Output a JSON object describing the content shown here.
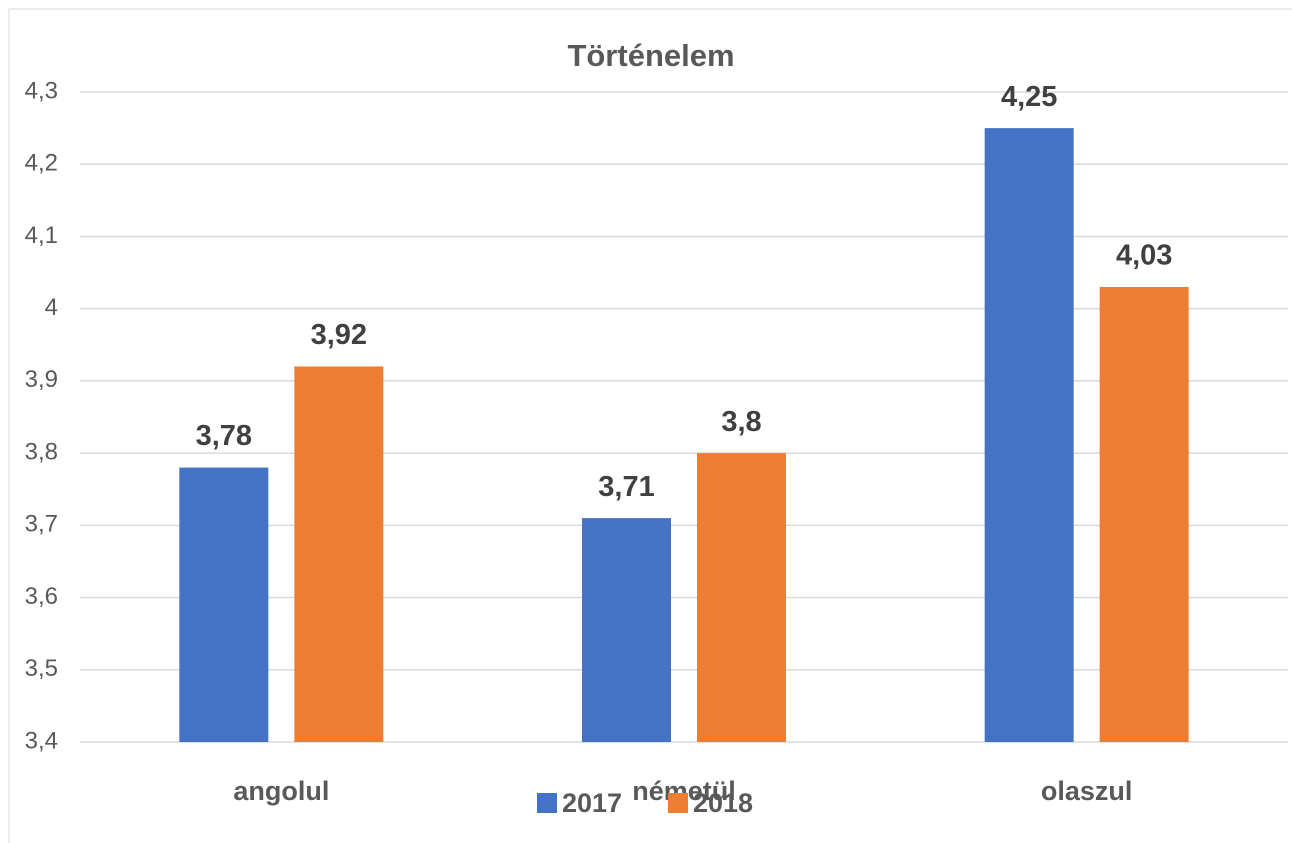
{
  "chart_data": {
    "type": "bar",
    "title": "Történelem",
    "categories": [
      "angolul",
      "németül",
      "olaszul"
    ],
    "series": [
      {
        "name": "2017",
        "color": "#4472c4",
        "values": [
          3.78,
          3.71,
          4.25
        ],
        "value_labels": [
          "3,78",
          "3,71",
          "4,25"
        ]
      },
      {
        "name": "2018",
        "color": "#ed7d31",
        "values": [
          3.92,
          3.8,
          4.03
        ],
        "value_labels": [
          "3,92",
          "3,8",
          "4,03"
        ]
      }
    ],
    "ylim": [
      3.4,
      4.3
    ],
    "yticks": [
      {
        "value": 3.4,
        "label": "3,4"
      },
      {
        "value": 3.5,
        "label": "3,5"
      },
      {
        "value": 3.6,
        "label": "3,6"
      },
      {
        "value": 3.7,
        "label": "3,7"
      },
      {
        "value": 3.8,
        "label": "3,8"
      },
      {
        "value": 3.9,
        "label": "3,9"
      },
      4,
      {
        "value": 4.1,
        "label": "4,1"
      },
      {
        "value": 4.2,
        "label": "4,2"
      },
      {
        "value": 4.3,
        "label": "4,3"
      }
    ],
    "grid": true,
    "legend": "bottom"
  }
}
